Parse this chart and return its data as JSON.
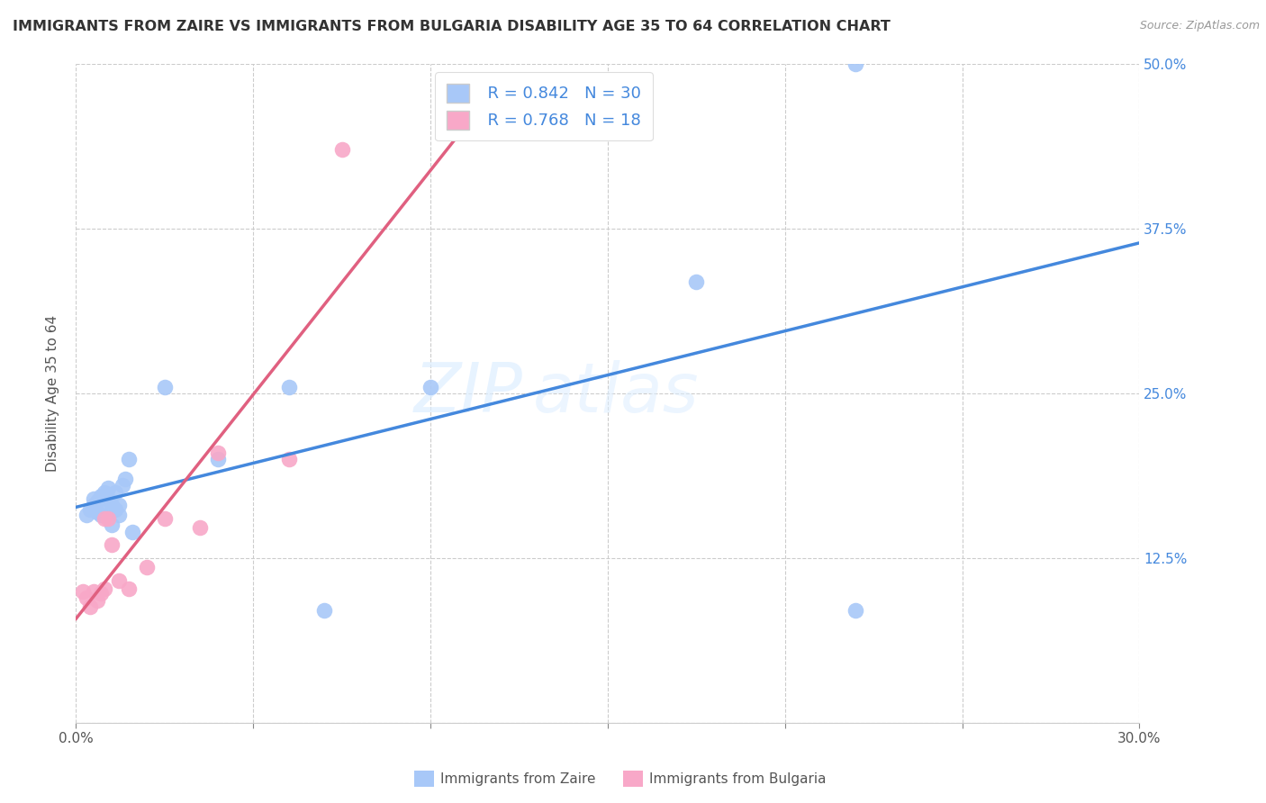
{
  "title": "IMMIGRANTS FROM ZAIRE VS IMMIGRANTS FROM BULGARIA DISABILITY AGE 35 TO 64 CORRELATION CHART",
  "source": "Source: ZipAtlas.com",
  "ylabel": "Disability Age 35 to 64",
  "xlim": [
    0.0,
    0.3
  ],
  "ylim": [
    0.0,
    0.5
  ],
  "watermark_zip": "ZIP",
  "watermark_atlas": "atlas",
  "zaire_color": "#a8c8f8",
  "bulgaria_color": "#f8a8c8",
  "zaire_line_color": "#4488dd",
  "bulgaria_line_color": "#e06080",
  "zaire_R": 0.842,
  "zaire_N": 30,
  "bulgaria_R": 0.768,
  "bulgaria_N": 18,
  "zaire_points_x": [
    0.003,
    0.004,
    0.005,
    0.005,
    0.006,
    0.006,
    0.007,
    0.007,
    0.008,
    0.008,
    0.009,
    0.009,
    0.01,
    0.01,
    0.011,
    0.011,
    0.012,
    0.012,
    0.013,
    0.014,
    0.015,
    0.016,
    0.025,
    0.04,
    0.06,
    0.07,
    0.1,
    0.175,
    0.22,
    0.22
  ],
  "zaire_points_y": [
    0.158,
    0.162,
    0.165,
    0.17,
    0.16,
    0.168,
    0.158,
    0.172,
    0.162,
    0.175,
    0.17,
    0.178,
    0.15,
    0.165,
    0.162,
    0.175,
    0.158,
    0.165,
    0.18,
    0.185,
    0.2,
    0.145,
    0.255,
    0.2,
    0.255,
    0.085,
    0.255,
    0.335,
    0.5,
    0.085
  ],
  "bulgaria_points_x": [
    0.002,
    0.003,
    0.004,
    0.005,
    0.006,
    0.007,
    0.008,
    0.008,
    0.009,
    0.01,
    0.012,
    0.015,
    0.02,
    0.025,
    0.035,
    0.04,
    0.06,
    0.075
  ],
  "bulgaria_points_y": [
    0.1,
    0.095,
    0.088,
    0.1,
    0.093,
    0.098,
    0.102,
    0.155,
    0.155,
    0.135,
    0.108,
    0.102,
    0.118,
    0.155,
    0.148,
    0.205,
    0.2,
    0.435
  ],
  "x_ticks": [
    0.0,
    0.05,
    0.1,
    0.15,
    0.2,
    0.25,
    0.3
  ],
  "y_ticks": [
    0.0,
    0.125,
    0.25,
    0.375,
    0.5
  ],
  "grid_color": "#cccccc",
  "background_color": "#ffffff",
  "title_fontsize": 11.5,
  "axis_label_fontsize": 11,
  "tick_fontsize": 11,
  "legend_fontsize": 13
}
